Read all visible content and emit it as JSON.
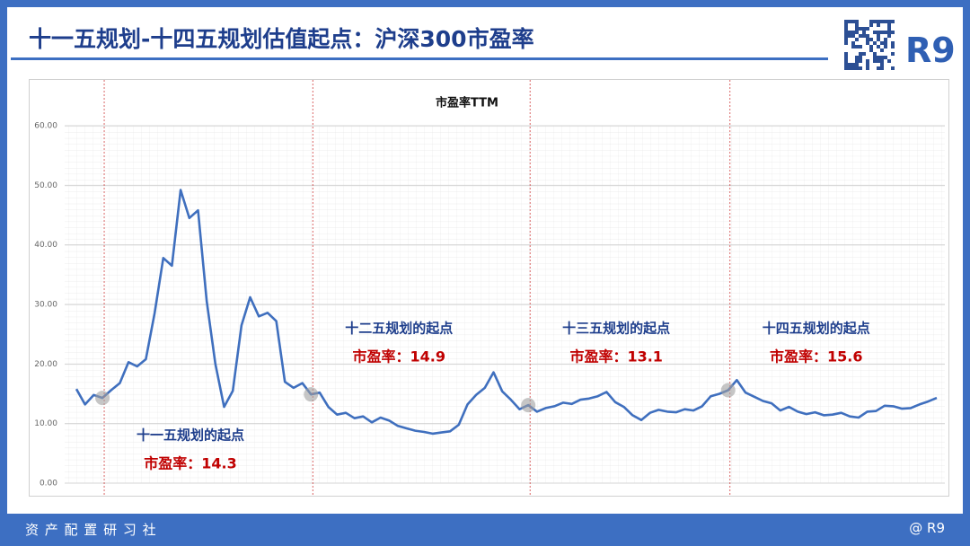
{
  "header": {
    "title": "十一五规划-十四五规划估值起点：沪深300市盈率",
    "logo": "R9"
  },
  "footer": {
    "left": "资 产 配 置 研 习 社",
    "right": "@ R9"
  },
  "chart_data": {
    "type": "line",
    "title": "市盈率TTM",
    "color": "#3f6fbe",
    "grid": true,
    "ylim": [
      0,
      60
    ],
    "yticks": [
      {
        "value": 0,
        "label": "0.00"
      },
      {
        "value": 10,
        "label": "10.00"
      },
      {
        "value": 20,
        "label": "20.00"
      },
      {
        "value": 30,
        "label": "30.00"
      },
      {
        "value": 40,
        "label": "40.00"
      },
      {
        "value": 50,
        "label": "50.00"
      },
      {
        "value": 60,
        "label": "60.00"
      }
    ],
    "values": [
      15.8,
      13.2,
      14.8,
      14.3,
      15.6,
      16.8,
      20.3,
      19.6,
      20.8,
      28.5,
      37.8,
      36.5,
      49.2,
      44.5,
      45.8,
      30.5,
      20.0,
      12.8,
      15.5,
      26.5,
      31.2,
      28.0,
      28.6,
      27.2,
      17.0,
      16.0,
      16.8,
      14.9,
      15.2,
      12.8,
      11.5,
      11.8,
      10.9,
      11.2,
      10.2,
      11.0,
      10.5,
      9.6,
      9.2,
      8.8,
      8.6,
      8.3,
      8.5,
      8.7,
      9.8,
      13.2,
      14.8,
      16.0,
      18.6,
      15.4,
      14.0,
      12.4,
      13.1,
      12.0,
      12.6,
      12.9,
      13.5,
      13.3,
      14.0,
      14.2,
      14.6,
      15.3,
      13.6,
      12.8,
      11.4,
      10.6,
      11.8,
      12.3,
      12.0,
      11.9,
      12.4,
      12.2,
      12.9,
      14.6,
      15.0,
      15.6,
      17.3,
      15.2,
      14.5,
      13.8,
      13.4,
      12.2,
      12.8,
      12.0,
      11.6,
      11.9,
      11.4,
      11.5,
      11.8,
      11.2,
      11.0,
      12.0,
      12.1,
      13.0,
      12.9,
      12.5,
      12.6,
      13.2,
      13.7,
      14.3
    ],
    "annotations": [
      {
        "title": "十一五规划的起点",
        "label": "市盈率：14.3",
        "value": 14.3
      },
      {
        "title": "十二五规划的起点",
        "label": "市盈率：14.9",
        "value": 14.9
      },
      {
        "title": "十三五规划的起点",
        "label": "市盈率：13.1",
        "value": 13.1
      },
      {
        "title": "十四五规划的起点",
        "label": "市盈率：15.6",
        "value": 15.6
      }
    ]
  }
}
